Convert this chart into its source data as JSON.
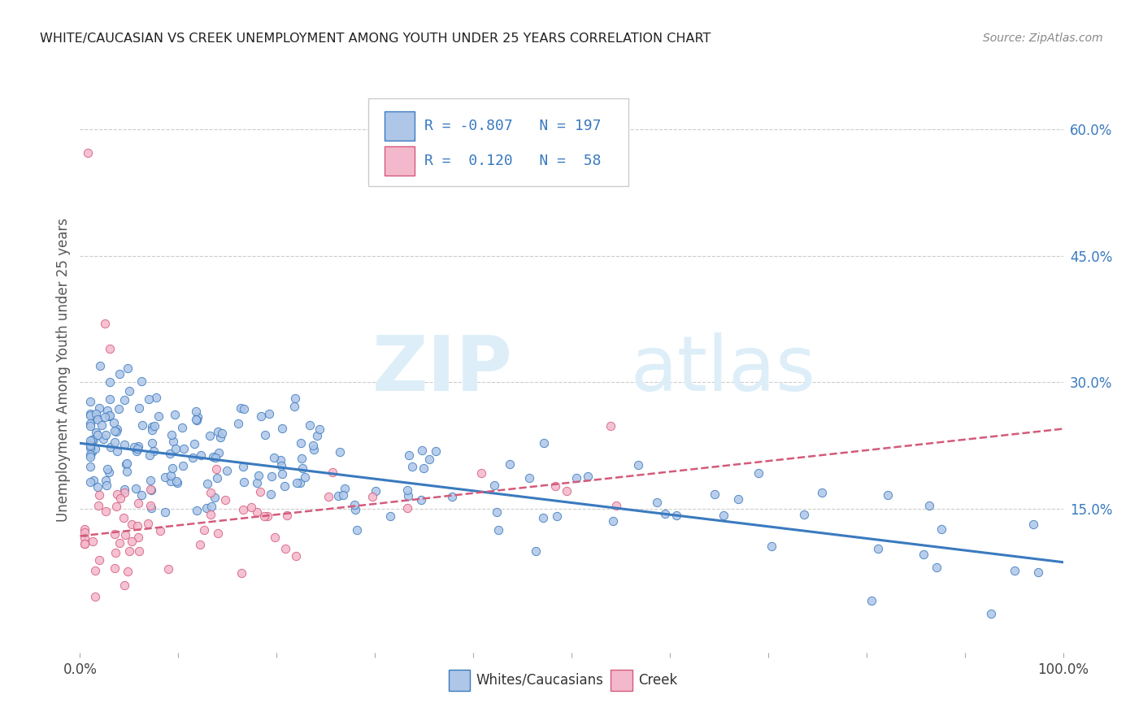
{
  "title": "WHITE/CAUCASIAN VS CREEK UNEMPLOYMENT AMONG YOUTH UNDER 25 YEARS CORRELATION CHART",
  "source": "Source: ZipAtlas.com",
  "ylabel": "Unemployment Among Youth under 25 years",
  "legend_label1": "Whites/Caucasians",
  "legend_label2": "Creek",
  "R1": -0.807,
  "N1": 197,
  "R2": 0.12,
  "N2": 58,
  "color_blue": "#aec6e8",
  "color_blue_dark": "#3a7abf",
  "color_pink": "#f4b8cc",
  "color_pink_dark": "#d45a7a",
  "color_stats": "#3a7abf",
  "watermark_zip": "ZIP",
  "watermark_atlas": "atlas",
  "xlim": [
    0.0,
    1.0
  ],
  "ylim": [
    -0.02,
    0.65
  ],
  "yticks": [
    0.0,
    0.15,
    0.3,
    0.45,
    0.6
  ],
  "ytick_labels": [
    "",
    "15.0%",
    "30.0%",
    "45.0%",
    "60.0%"
  ],
  "xticks": [
    0.0,
    0.1,
    0.2,
    0.3,
    0.4,
    0.5,
    0.6,
    0.7,
    0.8,
    0.9,
    1.0
  ],
  "xtick_labels": [
    "0.0%",
    "",
    "",
    "",
    "",
    "",
    "",
    "",
    "",
    "",
    "100.0%"
  ],
  "blue_line_x0": 0.0,
  "blue_line_x1": 1.0,
  "blue_line_y0": 0.228,
  "blue_line_y1": 0.087,
  "pink_line_x0": 0.0,
  "pink_line_x1": 1.0,
  "pink_line_y0": 0.118,
  "pink_line_y1": 0.245,
  "fig_width": 14.06,
  "fig_height": 8.92
}
